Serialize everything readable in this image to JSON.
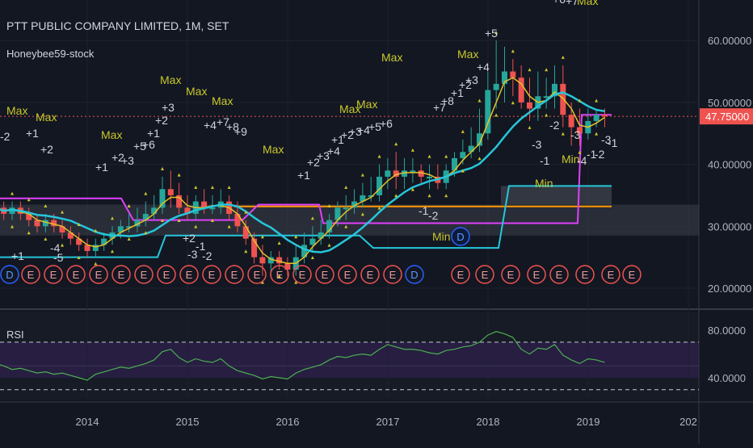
{
  "header": {
    "title": "PTT PUBLIC COMPANY LIMITED, 1M, SET",
    "indicator": "Honeybee59-stock"
  },
  "price_panel": {
    "current_price_label": "47.75000",
    "y_ticks": [
      "60.00000",
      "50.00000",
      "40.00000",
      "30.00000",
      "20.00000"
    ]
  },
  "rsi_panel": {
    "label": "RSI",
    "y_ticks": [
      "80.0000",
      "40.0000"
    ]
  },
  "x_axis": {
    "labels": [
      "2014",
      "2015",
      "2016",
      "2017",
      "2018",
      "2019",
      "202"
    ]
  },
  "colors": {
    "background": "#131722",
    "up_candle": "#26a69a",
    "down_candle": "#ef5350",
    "price_line": "#ef5350",
    "ma_cyan": "#26c6da",
    "ma_yellow": "#e6c229",
    "magenta": "#e040fb",
    "orange": "#ff9800",
    "rsi_line": "#4caf50",
    "annot_yellow": "#c8c82a",
    "annot_white": "#d1d4dc"
  },
  "chart_data": [
    {
      "type": "candlestick",
      "title": "PTT PUBLIC COMPANY LIMITED, 1M, SET",
      "ylim": [
        17,
        62
      ],
      "current_price": 47.75,
      "x": [
        "2013-02",
        "2013-03",
        "2013-04",
        "2013-05",
        "2013-06",
        "2013-07",
        "2013-08",
        "2013-09",
        "2013-10",
        "2013-11",
        "2013-12",
        "2014-01",
        "2014-02",
        "2014-03",
        "2014-04",
        "2014-05",
        "2014-06",
        "2014-07",
        "2014-08",
        "2014-09",
        "2014-10",
        "2014-11",
        "2014-12",
        "2015-01",
        "2015-02",
        "2015-03",
        "2015-04",
        "2015-05",
        "2015-06",
        "2015-07",
        "2015-08",
        "2015-09",
        "2015-10",
        "2015-11",
        "2015-12",
        "2016-01",
        "2016-02",
        "2016-03",
        "2016-04",
        "2016-05",
        "2016-06",
        "2016-07",
        "2016-08",
        "2016-09",
        "2016-10",
        "2016-11",
        "2016-12",
        "2017-01",
        "2017-02",
        "2017-03",
        "2017-04",
        "2017-05",
        "2017-06",
        "2017-07",
        "2017-08",
        "2017-09",
        "2017-10",
        "2017-11",
        "2017-12",
        "2018-01",
        "2018-02",
        "2018-03",
        "2018-04",
        "2018-05",
        "2018-06",
        "2018-07",
        "2018-08",
        "2018-09",
        "2018-10",
        "2018-11",
        "2018-12",
        "2019-01",
        "2019-02",
        "2019-03"
      ],
      "open": [
        34,
        33,
        32,
        33,
        32,
        31,
        30,
        31,
        30,
        29,
        28,
        27,
        26,
        27,
        28,
        29,
        30,
        30,
        31,
        32,
        33,
        36,
        35,
        33,
        32,
        34,
        33,
        33,
        34,
        32,
        30,
        28,
        25,
        24,
        25,
        24,
        23,
        25,
        27,
        28,
        29,
        31,
        33,
        33,
        34,
        35,
        35,
        38,
        39,
        38,
        39,
        39,
        38,
        38,
        37,
        39,
        41,
        42,
        43,
        45,
        52,
        53,
        55,
        54,
        50,
        49,
        51,
        51,
        53,
        48,
        46,
        45,
        47,
        48
      ],
      "high": [
        35,
        34,
        34,
        34,
        33,
        32,
        32,
        32,
        31,
        30,
        29,
        28,
        28,
        29,
        30,
        31,
        32,
        33,
        34,
        35,
        38,
        39,
        37,
        35,
        35,
        36,
        35,
        36,
        35,
        34,
        31,
        29,
        27,
        26,
        26,
        25,
        27,
        29,
        30,
        31,
        32,
        34,
        35,
        36,
        37,
        38,
        40,
        41,
        42,
        41,
        41,
        40,
        40,
        40,
        40,
        42,
        44,
        46,
        49,
        55,
        60,
        59,
        57,
        56,
        54,
        55,
        54,
        56,
        56,
        50,
        49,
        49,
        49,
        49
      ],
      "low": [
        32,
        31,
        31,
        31,
        30,
        29,
        29,
        29,
        28,
        27,
        26,
        25,
        25,
        26,
        27,
        28,
        29,
        29,
        30,
        31,
        32,
        33,
        32,
        31,
        31,
        32,
        32,
        32,
        31,
        29,
        27,
        24,
        22,
        22,
        23,
        22,
        22,
        24,
        26,
        27,
        28,
        30,
        31,
        32,
        33,
        34,
        34,
        36,
        36,
        36,
        37,
        37,
        36,
        36,
        36,
        38,
        40,
        41,
        42,
        44,
        49,
        50,
        51,
        49,
        47,
        47,
        49,
        49,
        46,
        43,
        43,
        44,
        46,
        46
      ],
      "close": [
        33,
        32,
        33,
        32,
        31,
        30,
        31,
        30,
        29,
        28,
        27,
        26,
        27,
        28,
        29,
        30,
        30,
        31,
        32,
        33,
        36,
        35,
        33,
        32,
        34,
        33,
        33,
        34,
        32,
        30,
        28,
        25,
        24,
        25,
        24,
        23,
        25,
        27,
        28,
        29,
        31,
        33,
        33,
        34,
        35,
        35,
        38,
        39,
        38,
        39,
        39,
        38,
        38,
        37,
        39,
        41,
        42,
        43,
        45,
        52,
        53,
        55,
        54,
        50,
        49,
        51,
        51,
        53,
        48,
        46,
        45,
        47,
        48,
        47.75
      ]
    },
    {
      "type": "line",
      "title": "RSI",
      "ylim": [
        30,
        82
      ],
      "x": [
        "2013-02",
        "2013-03",
        "2013-04",
        "2013-05",
        "2013-06",
        "2013-07",
        "2013-08",
        "2013-09",
        "2013-10",
        "2013-11",
        "2013-12",
        "2014-01",
        "2014-02",
        "2014-03",
        "2014-04",
        "2014-05",
        "2014-06",
        "2014-07",
        "2014-08",
        "2014-09",
        "2014-10",
        "2014-11",
        "2014-12",
        "2015-01",
        "2015-02",
        "2015-03",
        "2015-04",
        "2015-05",
        "2015-06",
        "2015-07",
        "2015-08",
        "2015-09",
        "2015-10",
        "2015-11",
        "2015-12",
        "2016-01",
        "2016-02",
        "2016-03",
        "2016-04",
        "2016-05",
        "2016-06",
        "2016-07",
        "2016-08",
        "2016-09",
        "2016-10",
        "2016-11",
        "2016-12",
        "2017-01",
        "2017-02",
        "2017-03",
        "2017-04",
        "2017-05",
        "2017-06",
        "2017-07",
        "2017-08",
        "2017-09",
        "2017-10",
        "2017-11",
        "2017-12",
        "2018-01",
        "2018-02",
        "2018-03",
        "2018-04",
        "2018-05",
        "2018-06",
        "2018-07",
        "2018-08",
        "2018-09",
        "2018-10",
        "2018-11",
        "2018-12",
        "2019-01",
        "2019-02",
        "2019-03"
      ],
      "values": [
        52,
        50,
        47,
        48,
        46,
        44,
        45,
        43,
        44,
        42,
        40,
        38,
        43,
        45,
        47,
        49,
        48,
        50,
        52,
        55,
        62,
        64,
        57,
        53,
        56,
        54,
        53,
        56,
        50,
        46,
        44,
        42,
        39,
        41,
        40,
        39,
        44,
        47,
        49,
        51,
        55,
        58,
        57,
        59,
        60,
        59,
        64,
        68,
        66,
        64,
        64,
        63,
        61,
        60,
        63,
        64,
        66,
        67,
        70,
        76,
        79,
        77,
        74,
        64,
        60,
        65,
        64,
        68,
        59,
        55,
        52,
        56,
        55,
        53
      ]
    }
  ],
  "annotations": {
    "max_labels": [
      "Max",
      "Max",
      "Max",
      "Max",
      "Max",
      "Max",
      "Max",
      "Max",
      "Max",
      "Max",
      "Max",
      "Max"
    ],
    "min_labels": [
      "Min",
      "Min",
      "Min"
    ],
    "count_labels": [
      "+1",
      "+2",
      "+1",
      "+2",
      "+3",
      "+5",
      "+6",
      "+1",
      "+2",
      "+3",
      "+4",
      "+7",
      "+8",
      "+9",
      "+1",
      "+2",
      "+3",
      "+4",
      "+1",
      "+2",
      "+3",
      "+4",
      "+5",
      "+6",
      "+7",
      "+8",
      "+1",
      "+2",
      "+3",
      "+4",
      "+5",
      "+6",
      "+7",
      "+1",
      "+2",
      "-1",
      "-2",
      "-3",
      "-4",
      "-5",
      "-1",
      "-2",
      "-3",
      "-1",
      "-2",
      "-3",
      "-4",
      "-1",
      "-2",
      "-3",
      "-1",
      "-2",
      "-3",
      "4"
    ],
    "event_markers": [
      "D",
      "E",
      "E",
      "E",
      "E",
      "E",
      "E",
      "E",
      "E",
      "E",
      "E",
      "E",
      "E",
      "E",
      "E",
      "E",
      "E",
      "E",
      "D",
      "E",
      "E",
      "E",
      "E",
      "E",
      "E",
      "E",
      "E"
    ]
  }
}
